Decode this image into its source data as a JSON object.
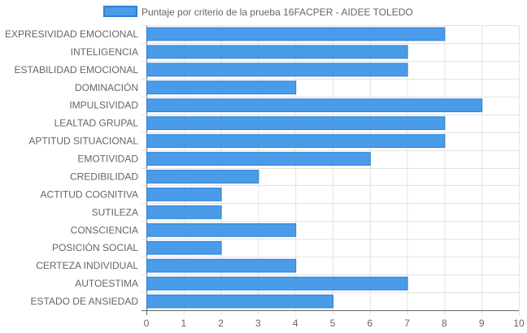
{
  "chart_data": {
    "type": "bar",
    "orientation": "horizontal",
    "title": "",
    "xlabel": "",
    "ylabel": "",
    "xlim": [
      0,
      10
    ],
    "x_ticks": [
      0,
      1,
      2,
      3,
      4,
      5,
      6,
      7,
      8,
      9,
      10
    ],
    "grid": true,
    "legend_position": "top",
    "categories": [
      "EXPRESIVIDAD EMOCIONAL",
      "INTELIGENCIA",
      "ESTABILIDAD EMOCIONAL",
      "DOMINACIÓN",
      "IMPULSIVIDAD",
      "LEALTAD GRUPAL",
      "APTITUD SITUACIONAL",
      "EMOTIVIDAD",
      "CREDIBILIDAD",
      "ACTITUD COGNITIVA",
      "SUTILEZA",
      "CONSCIENCIA",
      "POSICIÓN SOCIAL",
      "CERTEZA INDIVIDUAL",
      "AUTOESTIMA",
      "ESTADO DE ANSIEDAD"
    ],
    "series": [
      {
        "name": "Puntaje por criterio de la prueba 16FACPER - AIDEE TOLEDO",
        "color": "#4a9be8",
        "border_color": "#2f7fd6",
        "values": [
          8,
          7,
          7,
          4,
          9,
          8,
          8,
          6,
          3,
          2,
          2,
          4,
          2,
          4,
          7,
          5
        ]
      }
    ]
  }
}
